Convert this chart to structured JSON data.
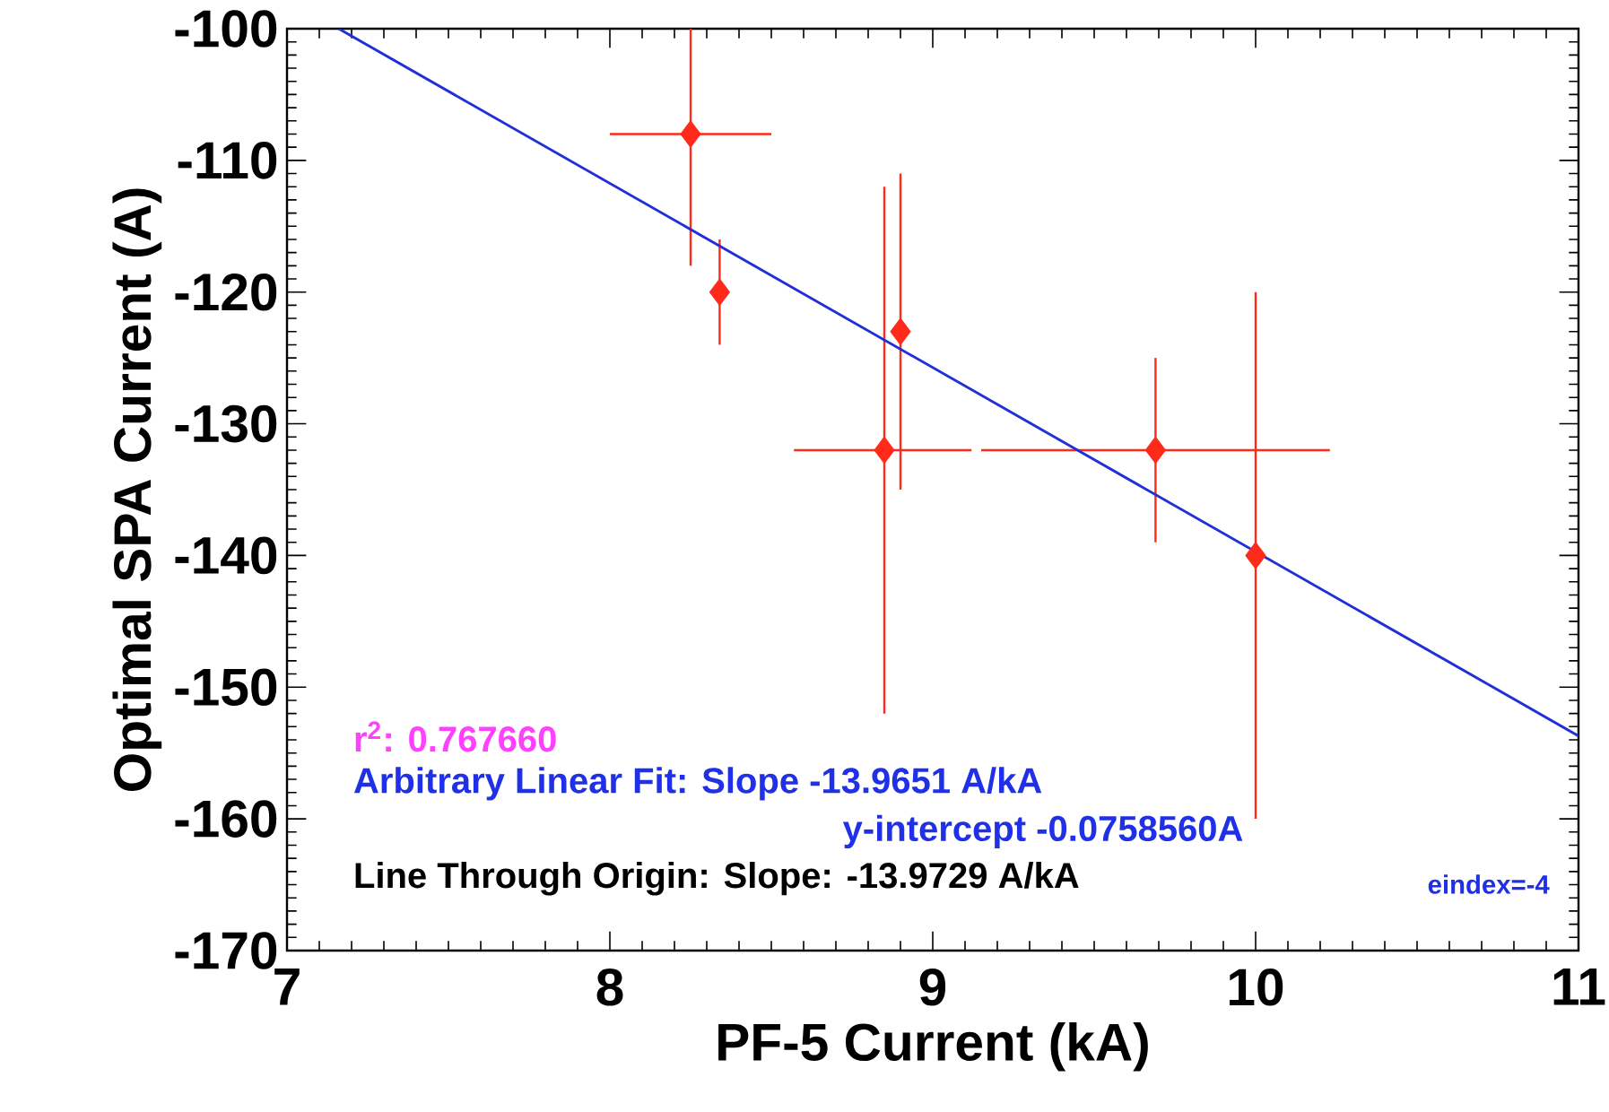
{
  "chart_data": {
    "type": "scatter",
    "xlabel": "PF-5 Current (kA)",
    "ylabel": "Optimal SPA Current (A)",
    "xlim": [
      7,
      11
    ],
    "ylim": [
      -170,
      -100
    ],
    "xticks": [
      7,
      8,
      9,
      10,
      11
    ],
    "yticks": [
      -170,
      -160,
      -150,
      -140,
      -130,
      -120,
      -110,
      -100
    ],
    "marker": "diamond",
    "grid": false,
    "series": [
      {
        "color": "#ff2a1a",
        "x": [
          8.25,
          8.34,
          8.9,
          8.85,
          9.69,
          10
        ],
        "values": [
          -108,
          -120,
          -123,
          -132,
          -132,
          -140
        ],
        "errors": [
          [
            -118,
            -100
          ],
          4,
          12,
          20,
          7,
          20
        ],
        "xerrors": [
          0.25,
          null,
          null,
          [
            8.57,
            9.12
          ],
          [
            9.15,
            10.23
          ],
          null
        ]
      },
      {
        "type": "line",
        "color": "#2030d8",
        "marker": "none",
        "x": [
          7.16,
          11
        ],
        "values": [
          -100,
          -153.7
        ]
      }
    ],
    "annotations": [
      "r$^{2}$: 0.767660",
      "Arbitrary Linear Fit: Slope -13.9651 A/kA",
      "y-intercept -0.0758560A",
      "Line Through Origin: Slope: -13.9729 A/kA",
      "eindex=-4"
    ]
  }
}
